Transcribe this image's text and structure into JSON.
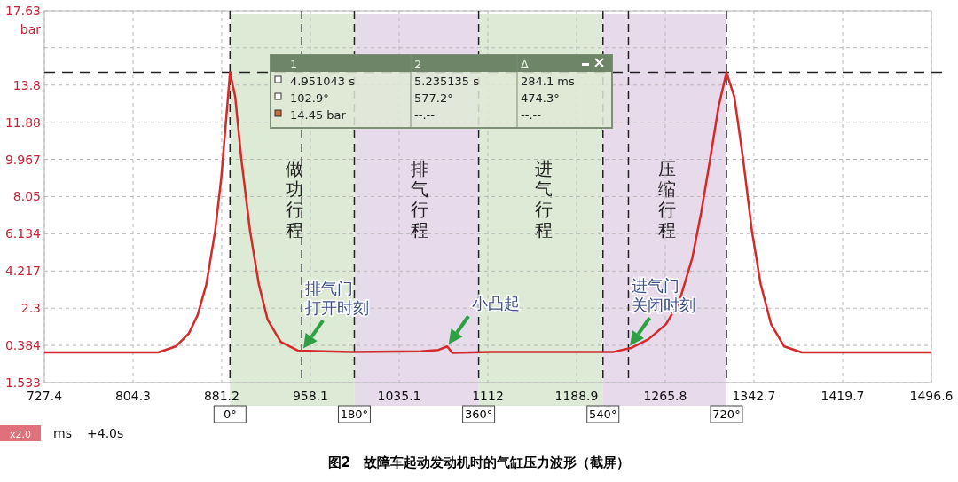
{
  "chart_data": {
    "type": "line",
    "title": "图2　故障车起动发动机时的气缸压力波形（截屏）",
    "xlabel": "ms",
    "ylabel": "bar",
    "x": [
      727.4,
      780.6,
      826.1,
      841.3,
      852.7,
      860.3,
      867.9,
      875.5,
      880.8,
      885.3,
      888.4,
      892.9,
      898.2,
      905.8,
      913.4,
      921.0,
      932.4,
      947.6,
      993.2,
      1053.9,
      1069.1,
      1076.7,
      1081.2,
      1114.6,
      1183.0,
      1220.9,
      1236.1,
      1251.3,
      1266.5,
      1277.9,
      1289.3,
      1296.9,
      1304.5,
      1312.1,
      1318.9,
      1325.7,
      1333.3,
      1341.0,
      1348.6,
      1357.6,
      1369.0,
      1384.2,
      1448.7,
      1496.6
    ],
    "series": [
      {
        "color": "#d42a2a",
        "values": [
          0.02,
          0.02,
          0.02,
          0.33,
          1.0,
          1.94,
          3.53,
          6.27,
          9.0,
          12.2,
          14.45,
          13.2,
          10.0,
          6.27,
          3.53,
          1.71,
          0.57,
          0.11,
          0.05,
          0.08,
          0.15,
          0.33,
          0.0,
          0.05,
          0.05,
          0.05,
          0.25,
          0.7,
          1.48,
          2.62,
          4.9,
          7.2,
          9.9,
          12.7,
          14.45,
          13.2,
          10.0,
          6.27,
          3.53,
          1.48,
          0.33,
          0.02,
          0.02,
          0.02
        ]
      }
    ],
    "xlim": [
      727.4,
      1496.6
    ],
    "xticks": [
      727.4,
      804.3,
      881.2,
      958.1,
      1035.1,
      1112.0,
      1188.9,
      1265.8,
      1342.7,
      1419.7,
      1496.6
    ],
    "ylim": [
      -1.533,
      17.63
    ],
    "yticks": [
      -1.533,
      0.384,
      2.3,
      4.217,
      6.134,
      8.05,
      9.967,
      11.88,
      13.8,
      {
        "value": 15.72,
        "label": null
      },
      17.63
    ],
    "grid": true,
    "marker": "none",
    "line_style": "solid",
    "bands": [
      {
        "axis": "x",
        "from": 888.4,
        "to": 996.2,
        "label": "做功行程",
        "color": "#d7e8cf"
      },
      {
        "axis": "x",
        "from": 996.2,
        "to": 1104.0,
        "label": "排气行程",
        "color": "#e3d3e8"
      },
      {
        "axis": "x",
        "from": 1104.0,
        "to": 1211.8,
        "label": "进气行程",
        "color": "#d7e8cf"
      },
      {
        "axis": "x",
        "from": 1211.8,
        "to": 1318.9,
        "label": "压缩行程",
        "color": "#e3d3e8"
      }
    ],
    "ref_lines": [
      {
        "axis": "x",
        "value": 888.4
      },
      {
        "axis": "x",
        "value": 950.6
      },
      {
        "axis": "x",
        "value": 996.2
      },
      {
        "axis": "x",
        "value": 1104.0
      },
      {
        "axis": "x",
        "value": 1211.8
      },
      {
        "axis": "x",
        "value": 1233.9
      },
      {
        "axis": "x",
        "value": 1318.9
      },
      {
        "axis": "y",
        "value": 14.45
      }
    ],
    "annotations": [
      {
        "text": "排气门打开时刻",
        "x": 950.6,
        "y": 0.11
      },
      {
        "text": "小凸起",
        "x": 1076.7,
        "y": 0.33
      },
      {
        "text": "进气门关闭时刻",
        "x": 1233.9,
        "y": 0.25
      },
      "1",
      "2",
      "Δ",
      "4.951043 s",
      "5.235135 s",
      "284.1 ms",
      "102.9°",
      "577.2°",
      "474.3°",
      "14.45 bar",
      "--.--",
      "--.--",
      "x2.0",
      "+4.0s",
      "0°",
      "180°",
      "360°",
      "540°",
      "720°"
    ]
  }
}
